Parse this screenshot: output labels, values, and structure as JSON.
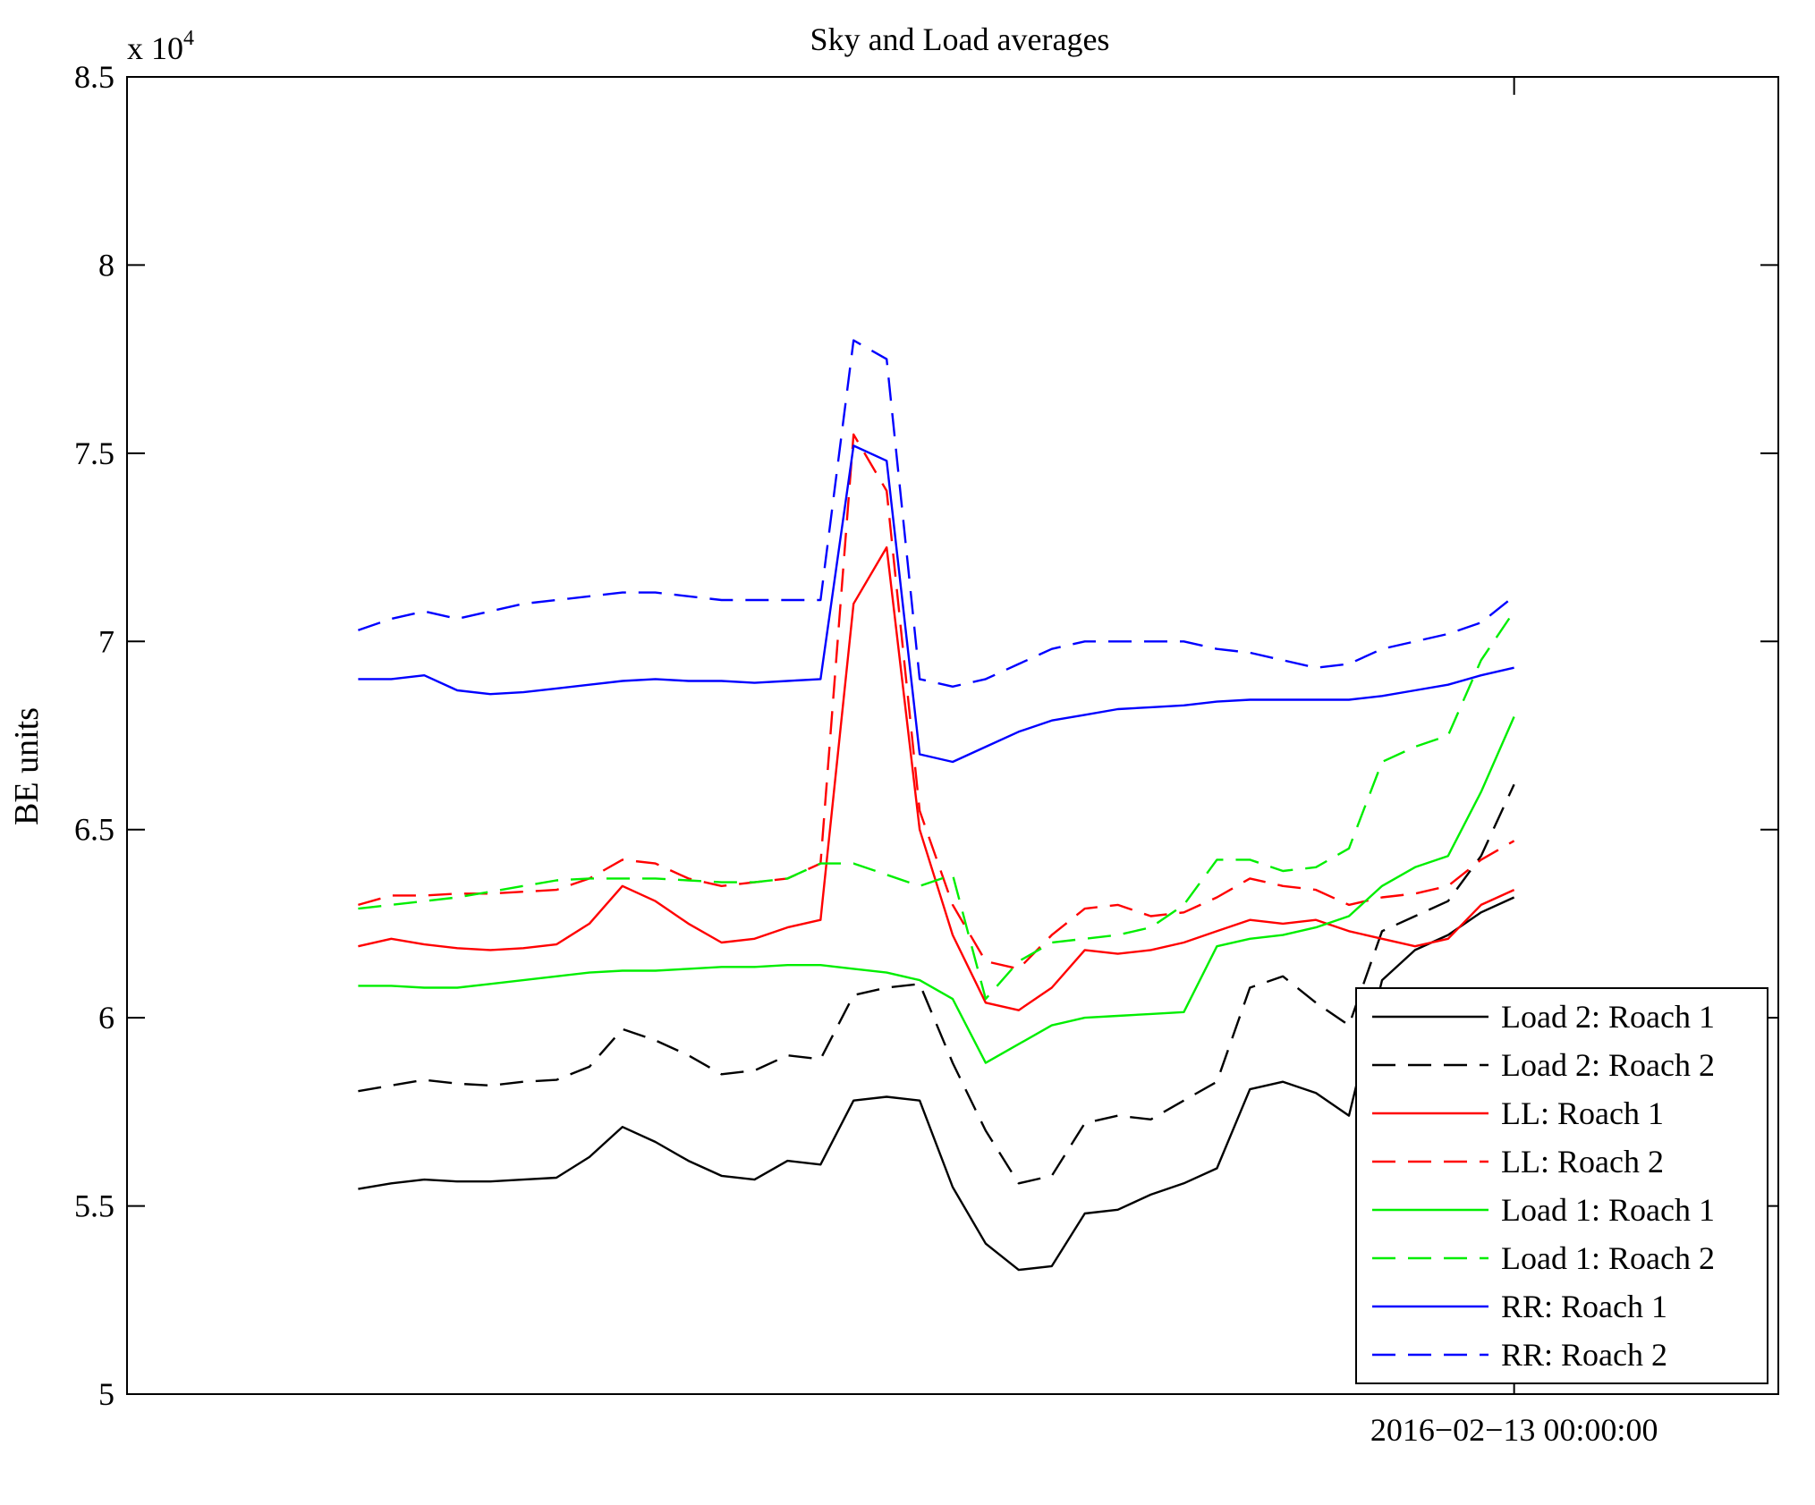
{
  "chart_data": {
    "type": "line",
    "title": "Sky and Load averages",
    "xlabel": "",
    "ylabel": "BE units",
    "y_exponent_label": "x 10",
    "y_exponent_power": "4",
    "ylim": [
      50000,
      85000
    ],
    "yticks": [
      50000,
      55000,
      60000,
      65000,
      70000,
      75000,
      80000,
      85000
    ],
    "ytick_labels": [
      "5",
      "5.5",
      "6",
      "6.5",
      "7",
      "7.5",
      "8",
      "8.5"
    ],
    "xlim": [
      0,
      100
    ],
    "xticks": [
      84
    ],
    "xtick_labels": [
      "2016−02−13 00:00:00"
    ],
    "grid": false,
    "legend_position": "bottom-right",
    "x": [
      14,
      16,
      18,
      20,
      22,
      24,
      26,
      28,
      30,
      32,
      34,
      36,
      38,
      40,
      42,
      44,
      46,
      48,
      50,
      52,
      54,
      56,
      58,
      60,
      62,
      64,
      66,
      68,
      70,
      72,
      74,
      76,
      78,
      80,
      82,
      84
    ],
    "series": [
      {
        "name": "Load 2: Roach 1",
        "color": "#000000",
        "dash": "solid",
        "values": [
          55450,
          55600,
          55700,
          55650,
          55650,
          55700,
          55750,
          56300,
          57100,
          56700,
          56200,
          55800,
          55700,
          56200,
          56100,
          57800,
          57900,
          57800,
          55500,
          54000,
          53300,
          53400,
          54800,
          54900,
          55300,
          55600,
          56000,
          58100,
          58300,
          58000,
          57400,
          61000,
          61800,
          62200,
          62800,
          63200
        ]
      },
      {
        "name": "Load 2: Roach 2",
        "color": "#000000",
        "dash": "dashed",
        "values": [
          58050,
          58200,
          58350,
          58250,
          58200,
          58300,
          58350,
          58700,
          59700,
          59400,
          59000,
          58500,
          58600,
          59000,
          58900,
          60600,
          60800,
          60900,
          58800,
          57000,
          55600,
          55800,
          57200,
          57400,
          57300,
          57800,
          58300,
          60800,
          61100,
          60400,
          59800,
          62300,
          62700,
          63100,
          64300,
          66200
        ]
      },
      {
        "name": "LL: Roach 1",
        "color": "#ff0000",
        "dash": "solid",
        "values": [
          61900,
          62100,
          61950,
          61850,
          61800,
          61850,
          61950,
          62500,
          63500,
          63100,
          62500,
          62000,
          62100,
          62400,
          62600,
          71000,
          72500,
          65000,
          62200,
          60400,
          60200,
          60800,
          61800,
          61700,
          61800,
          62000,
          62300,
          62600,
          62500,
          62600,
          62300,
          62100,
          61900,
          62100,
          63000,
          63400
        ]
      },
      {
        "name": "LL: Roach 2",
        "color": "#ff0000",
        "dash": "dashed",
        "values": [
          63000,
          63250,
          63250,
          63300,
          63300,
          63350,
          63400,
          63700,
          64200,
          64100,
          63700,
          63500,
          63600,
          63700,
          64100,
          75500,
          74000,
          65500,
          63000,
          61500,
          61300,
          62200,
          62900,
          63000,
          62700,
          62800,
          63200,
          63700,
          63500,
          63400,
          63000,
          63200,
          63300,
          63500,
          64200,
          64700
        ]
      },
      {
        "name": "Load 1: Roach 1",
        "color": "#00ee00",
        "dash": "solid",
        "values": [
          60850,
          60850,
          60800,
          60800,
          60900,
          61000,
          61100,
          61200,
          61250,
          61250,
          61300,
          61350,
          61350,
          61400,
          61400,
          61300,
          61200,
          61000,
          60500,
          58800,
          59300,
          59800,
          60000,
          60050,
          60100,
          60150,
          61900,
          62100,
          62200,
          62400,
          62700,
          63500,
          64000,
          64300,
          66000,
          68000
        ]
      },
      {
        "name": "Load 1: Roach 2",
        "color": "#00ee00",
        "dash": "dashed",
        "values": [
          62900,
          63000,
          63100,
          63200,
          63350,
          63500,
          63650,
          63700,
          63700,
          63700,
          63650,
          63600,
          63600,
          63700,
          64100,
          64100,
          63800,
          63500,
          63800,
          60500,
          61500,
          62000,
          62100,
          62200,
          62400,
          63000,
          64200,
          64200,
          63900,
          64000,
          64500,
          66800,
          67200,
          67500,
          69500,
          70800
        ]
      },
      {
        "name": "RR: Roach 1",
        "color": "#0000ff",
        "dash": "solid",
        "values": [
          69000,
          69000,
          69100,
          68700,
          68600,
          68650,
          68750,
          68850,
          68950,
          69000,
          68950,
          68950,
          68900,
          68950,
          69000,
          75200,
          74800,
          67000,
          66800,
          67200,
          67600,
          67900,
          68050,
          68200,
          68250,
          68300,
          68400,
          68450,
          68450,
          68450,
          68450,
          68550,
          68700,
          68850,
          69100,
          69300
        ]
      },
      {
        "name": "RR: Roach 2",
        "color": "#0000ff",
        "dash": "dashed",
        "values": [
          70300,
          70600,
          70800,
          70600,
          70800,
          71000,
          71100,
          71200,
          71300,
          71300,
          71200,
          71100,
          71100,
          71100,
          71100,
          78000,
          77500,
          69000,
          68800,
          69000,
          69400,
          69800,
          70000,
          70000,
          70000,
          70000,
          69800,
          69700,
          69500,
          69300,
          69400,
          69800,
          70000,
          70200,
          70500,
          71200
        ]
      }
    ]
  }
}
